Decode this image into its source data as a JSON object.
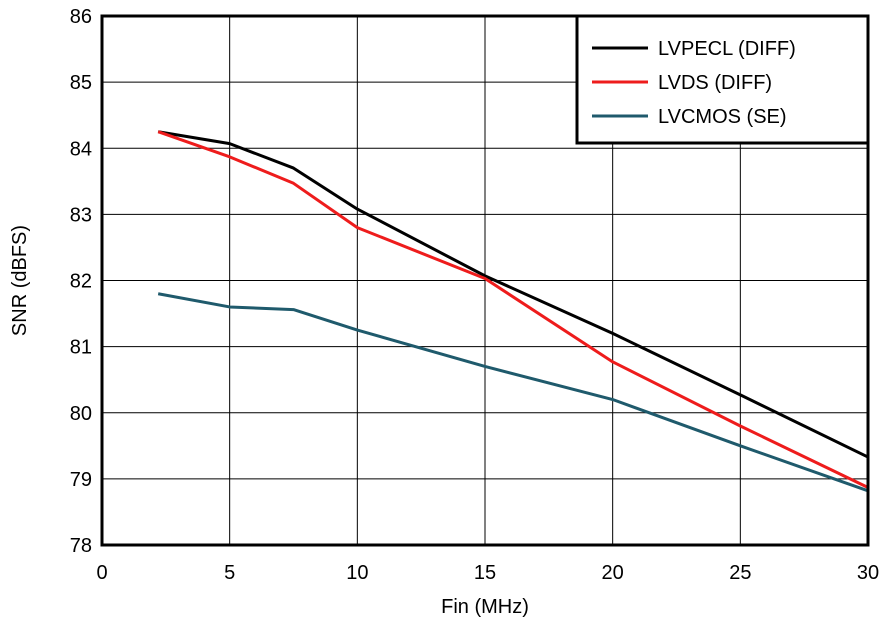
{
  "chart_data": {
    "type": "line",
    "title": "",
    "xlabel": "Fin (MHz)",
    "ylabel": "SNR (dBFS)",
    "xlim": [
      0,
      30
    ],
    "ylim": [
      78,
      86
    ],
    "xticks": [
      0,
      5,
      10,
      15,
      20,
      25,
      30
    ],
    "yticks": [
      78,
      79,
      80,
      81,
      82,
      83,
      84,
      85,
      86
    ],
    "grid": true,
    "legend_position": "top-right",
    "series": [
      {
        "name": "LVPECL (DIFF)",
        "color": "#000000",
        "x": [
          2.2,
          5,
          7.5,
          10,
          15,
          20,
          25,
          30
        ],
        "y": [
          84.25,
          84.07,
          83.7,
          83.08,
          82.07,
          81.2,
          80.27,
          79.33
        ]
      },
      {
        "name": "LVDS (DIFF)",
        "color": "#ee1c1c",
        "x": [
          2.2,
          5,
          7.5,
          10,
          15,
          20,
          25,
          30
        ],
        "y": [
          84.25,
          83.87,
          83.47,
          82.8,
          82.03,
          80.77,
          79.8,
          78.87
        ]
      },
      {
        "name": "LVCMOS (SE)",
        "color": "#1f5a6c",
        "x": [
          2.2,
          5,
          7.5,
          10,
          15,
          20,
          25,
          30
        ],
        "y": [
          81.8,
          81.6,
          81.56,
          81.25,
          80.7,
          80.2,
          79.5,
          78.82
        ]
      }
    ]
  }
}
